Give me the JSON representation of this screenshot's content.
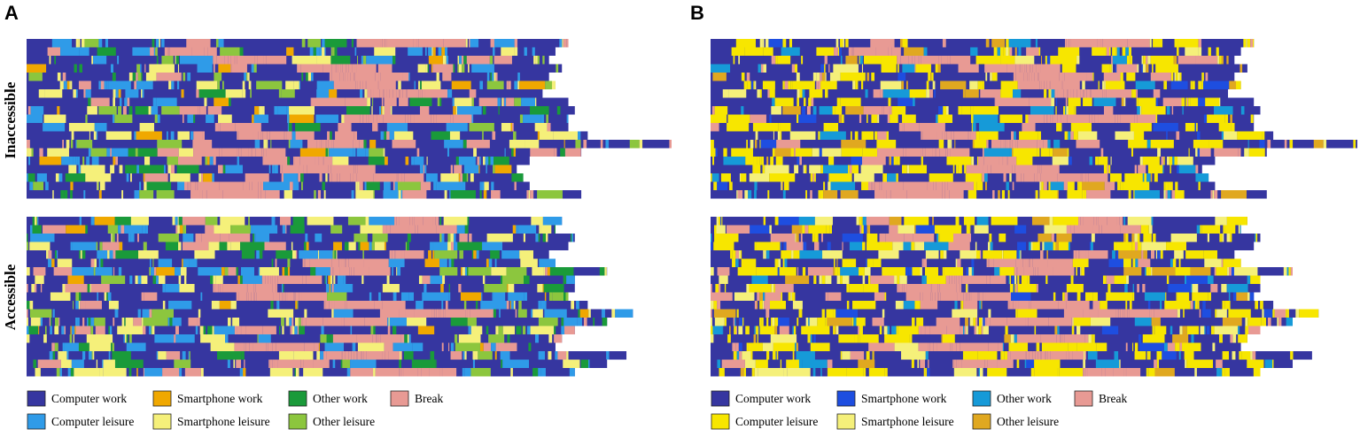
{
  "chart_data": [
    {
      "type": "sequence",
      "panel": "A",
      "groups": [
        {
          "label": "Inaccessible",
          "rows": 19
        },
        {
          "label": "Accessible",
          "rows": 19
        }
      ],
      "categories": [
        {
          "key": "cw",
          "label": "Computer work",
          "color": "#3636a0"
        },
        {
          "key": "sw",
          "label": "Smartphone work",
          "color": "#f0a800"
        },
        {
          "key": "ow",
          "label": "Other work",
          "color": "#1a9a3a"
        },
        {
          "key": "br",
          "label": "Break",
          "color": "#e89a94"
        },
        {
          "key": "cl",
          "label": "Computer leisure",
          "color": "#2f9be8"
        },
        {
          "key": "sl",
          "label": "Smartphone leisure",
          "color": "#f5f07a"
        },
        {
          "key": "ol",
          "label": "Other leisure",
          "color": "#8cc63e"
        }
      ],
      "row_lengths": {
        "Inaccessible": [
          0.84,
          0.82,
          0.81,
          0.83,
          0.81,
          0.82,
          0.8,
          0.84,
          0.85,
          0.84,
          0.84,
          0.87,
          1.0,
          0.86,
          0.78,
          0.76,
          0.77,
          0.78,
          0.86
        ],
        "Accessible": [
          0.83,
          0.82,
          0.85,
          0.84,
          0.81,
          0.82,
          0.9,
          0.85,
          0.85,
          0.84,
          0.87,
          0.94,
          0.9,
          0.85,
          0.83,
          0.82,
          0.93,
          0.9,
          0.85
        ]
      }
    },
    {
      "type": "sequence",
      "panel": "B",
      "groups": [
        {
          "label": "Inaccessible",
          "rows": 19
        },
        {
          "label": "Accessible",
          "rows": 19
        }
      ],
      "categories": [
        {
          "key": "cw",
          "label": "Computer work",
          "color": "#3636a0"
        },
        {
          "key": "sw",
          "label": "Smartphone work",
          "color": "#1e4ee0"
        },
        {
          "key": "ow",
          "label": "Other work",
          "color": "#169ad8"
        },
        {
          "key": "br",
          "label": "Break",
          "color": "#e89a94"
        },
        {
          "key": "cl",
          "label": "Computer leisure",
          "color": "#f7e600"
        },
        {
          "key": "sl",
          "label": "Smartphone leisure",
          "color": "#f5f07a"
        },
        {
          "key": "ol",
          "label": "Other leisure",
          "color": "#e0a820"
        }
      ],
      "row_lengths": {
        "Inaccessible": [
          0.84,
          0.82,
          0.81,
          0.83,
          0.81,
          0.82,
          0.8,
          0.84,
          0.85,
          0.84,
          0.84,
          0.87,
          1.0,
          0.86,
          0.78,
          0.76,
          0.77,
          0.78,
          0.86
        ],
        "Accessible": [
          0.83,
          0.82,
          0.85,
          0.84,
          0.81,
          0.82,
          0.9,
          0.85,
          0.85,
          0.84,
          0.87,
          0.94,
          0.9,
          0.85,
          0.83,
          0.82,
          0.93,
          0.9,
          0.85
        ]
      }
    }
  ]
}
